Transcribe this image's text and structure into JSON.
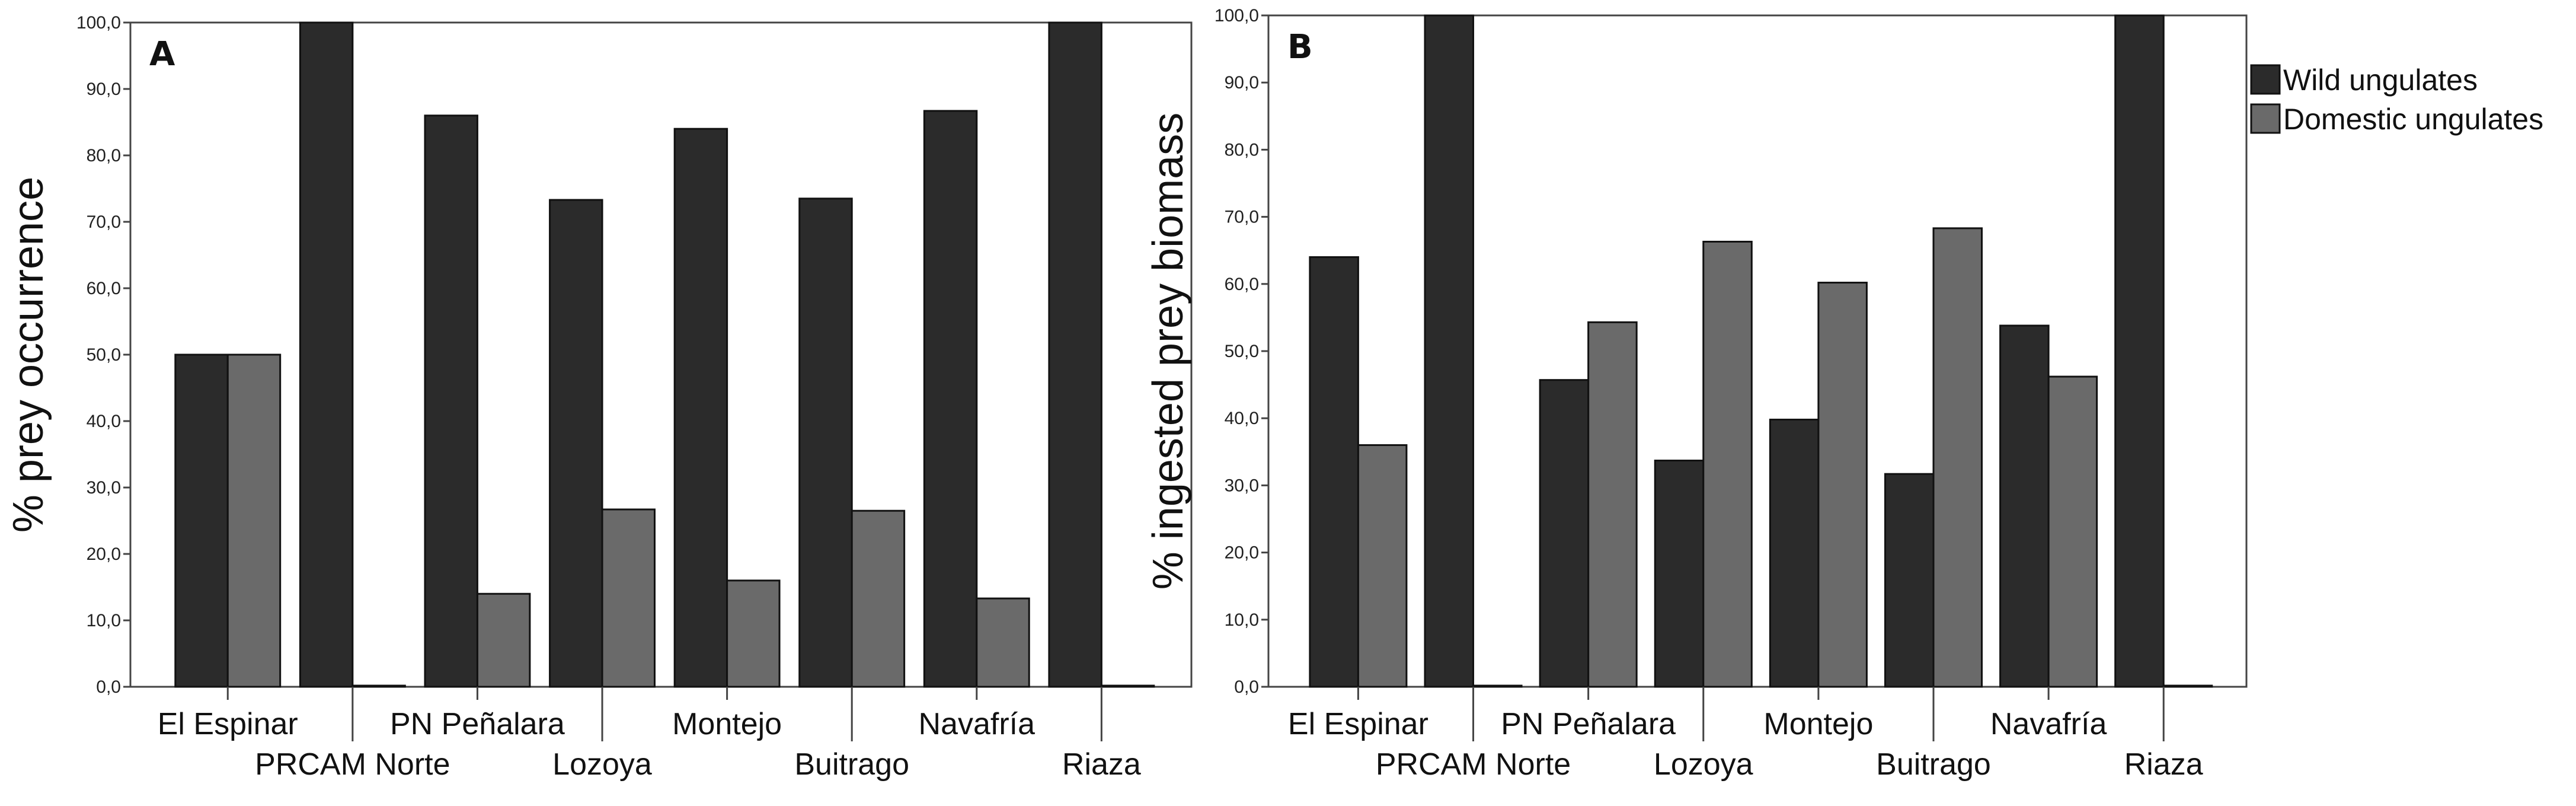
{
  "chart_data": [
    {
      "type": "bar",
      "panel_label": "A",
      "title": "",
      "xlabel": "",
      "ylabel": "% prey occurrence",
      "ylim": [
        0,
        100
      ],
      "ytick_labels": [
        "0,0",
        "10,0",
        "20,0",
        "30,0",
        "40,0",
        "50,0",
        "60,0",
        "70,0",
        "80,0",
        "90,0",
        "100,0"
      ],
      "categories": [
        "El Espinar",
        "PRCAM Norte",
        "PN Peñalara",
        "Lozoya",
        "Montejo",
        "Buitrago",
        "Navafría",
        "Riaza"
      ],
      "series": [
        {
          "name": "Wild ungulates",
          "color": "#2b2b2b",
          "values": [
            50.0,
            100.0,
            86.0,
            73.3,
            84.0,
            73.5,
            86.7,
            100.0
          ]
        },
        {
          "name": "Domestic ungulates",
          "color": "#6a6a6a",
          "values": [
            50.0,
            0.0,
            14.0,
            26.7,
            16.0,
            26.5,
            13.3,
            0.0
          ]
        }
      ]
    },
    {
      "type": "bar",
      "panel_label": "B",
      "title": "",
      "xlabel": "",
      "ylabel": "% ingested prey biomass",
      "ylim": [
        0,
        100
      ],
      "ytick_labels": [
        "0,0",
        "10,0",
        "20,0",
        "30,0",
        "40,0",
        "50,0",
        "60,0",
        "70,0",
        "80,0",
        "90,0",
        "100,0"
      ],
      "categories": [
        "El Espinar",
        "PRCAM Norte",
        "PN Peñalara",
        "Lozoya",
        "Montejo",
        "Buitrago",
        "Navafría",
        "Riaza"
      ],
      "series": [
        {
          "name": "Wild ungulates",
          "color": "#2b2b2b",
          "values": [
            64.0,
            100.0,
            45.7,
            33.7,
            39.8,
            31.7,
            53.8,
            100.0
          ]
        },
        {
          "name": "Domestic ungulates",
          "color": "#6a6a6a",
          "values": [
            36.0,
            0.0,
            54.3,
            66.3,
            60.2,
            68.3,
            46.2,
            0.0
          ]
        }
      ]
    }
  ],
  "legend": {
    "placement": "right",
    "items": [
      {
        "label": "Wild ungulates",
        "color": "#2b2b2b"
      },
      {
        "label": "Domestic ungulates",
        "color": "#6a6a6a"
      }
    ]
  }
}
